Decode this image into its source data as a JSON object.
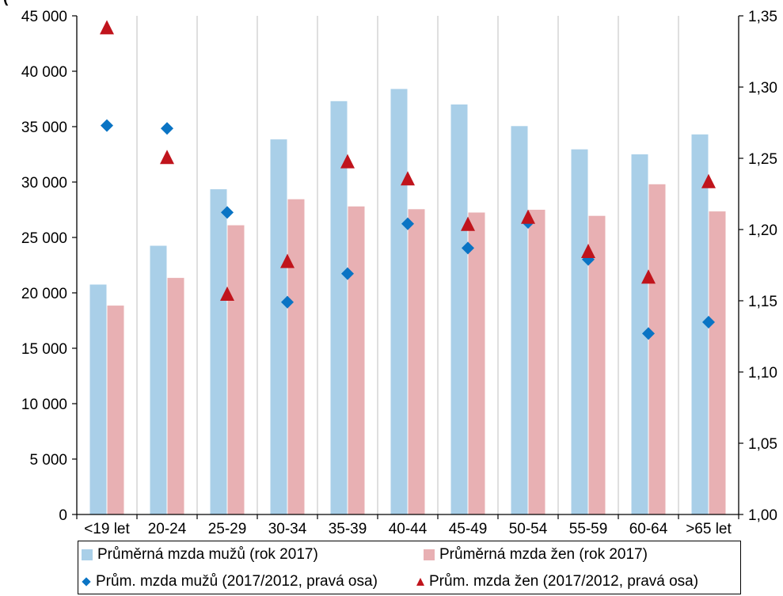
{
  "title_fragment": "(",
  "title_fragment_bold": "",
  "colors": {
    "men_bar": "#a9cfe8",
    "women_bar": "#e8b0b3",
    "men_marker": "#0a74c4",
    "women_marker": "#c0141c",
    "axis": "#000000",
    "grid": "#bfbfbf"
  },
  "chart_data": {
    "type": "bar",
    "categories": [
      "<19 let",
      "20-24",
      "25-29",
      "30-34",
      "35-39",
      "40-44",
      "45-49",
      "50-54",
      "55-59",
      "60-64",
      ">65 let"
    ],
    "series": [
      {
        "name": "Průměrná mzda mužů (rok 2017)",
        "type": "bar",
        "axis": "left",
        "values": [
          20750,
          24250,
          29350,
          33850,
          37300,
          38400,
          37000,
          35050,
          32950,
          32500,
          34300
        ]
      },
      {
        "name": "Průměrná mzda žen (rok 2017)",
        "type": "bar",
        "axis": "left",
        "values": [
          18850,
          21350,
          26100,
          28450,
          27800,
          27550,
          27250,
          27500,
          26950,
          29800,
          27350
        ]
      },
      {
        "name": "Prům. mzda mužů (2017/2012, pravá osa)",
        "type": "scatter",
        "marker": "diamond",
        "axis": "right",
        "values": [
          1.273,
          1.271,
          1.212,
          1.149,
          1.169,
          1.204,
          1.187,
          1.205,
          1.179,
          1.127,
          1.135
        ]
      },
      {
        "name": "Prům. mzda žen (2017/2012, pravá osa)",
        "type": "scatter",
        "marker": "triangle",
        "axis": "right",
        "values": [
          1.342,
          1.251,
          1.155,
          1.178,
          1.248,
          1.236,
          1.204,
          1.209,
          1.185,
          1.167,
          1.234
        ]
      }
    ],
    "left_axis": {
      "ylim": [
        0,
        45000
      ],
      "tick_labels": [
        "0",
        "5 000",
        "10 000",
        "15 000",
        "20 000",
        "25 000",
        "30 000",
        "35 000",
        "40 000",
        "45 000"
      ]
    },
    "right_axis": {
      "ylim": [
        1.0,
        1.35
      ],
      "tick_labels": [
        "1,00",
        "1,05",
        "1,10",
        "1,15",
        "1,20",
        "1,25",
        "1,30",
        "1,35"
      ]
    },
    "grid": "vertical",
    "legend_position": "bottom"
  }
}
